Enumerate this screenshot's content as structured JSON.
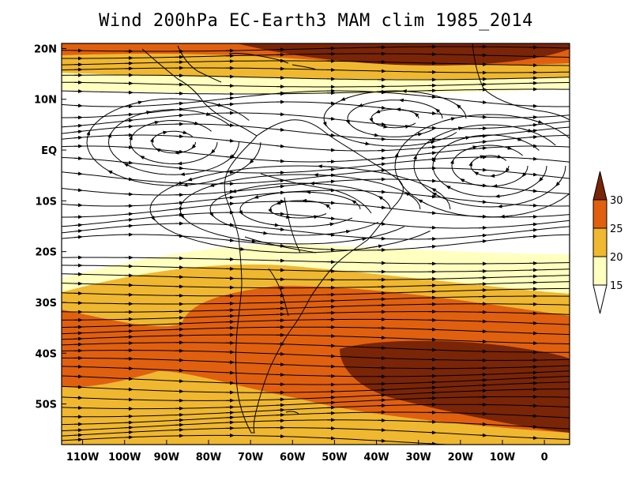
{
  "title": "Wind 200hPa EC-Earth3 MAM clim 1985_2014",
  "map": {
    "lon_range": [
      -115,
      6
    ],
    "lat_range": [
      -58,
      21
    ],
    "lat_ticks": [
      {
        "lat": 20,
        "label": "20N"
      },
      {
        "lat": 10,
        "label": "10N"
      },
      {
        "lat": 0,
        "label": "EQ"
      },
      {
        "lat": -10,
        "label": "10S"
      },
      {
        "lat": -20,
        "label": "20S"
      },
      {
        "lat": -30,
        "label": "30S"
      },
      {
        "lat": -40,
        "label": "40S"
      },
      {
        "lat": -50,
        "label": "50S"
      }
    ],
    "lon_ticks": [
      {
        "lon": -110,
        "label": "110W"
      },
      {
        "lon": -100,
        "label": "100W"
      },
      {
        "lon": -90,
        "label": "90W"
      },
      {
        "lon": -80,
        "label": "80W"
      },
      {
        "lon": -70,
        "label": "70W"
      },
      {
        "lon": -60,
        "label": "60W"
      },
      {
        "lon": -50,
        "label": "50W"
      },
      {
        "lon": -40,
        "label": "40W"
      },
      {
        "lon": -30,
        "label": "30W"
      },
      {
        "lon": -20,
        "label": "20W"
      },
      {
        "lon": -10,
        "label": "10W"
      },
      {
        "lon": 0,
        "label": "0"
      }
    ]
  },
  "colorbar": {
    "labels": [
      "15",
      "20",
      "25",
      "30"
    ],
    "colors": [
      "#ffffff",
      "#ffffc0",
      "#f0b830",
      "#e06010",
      "#7a2508"
    ]
  }
}
